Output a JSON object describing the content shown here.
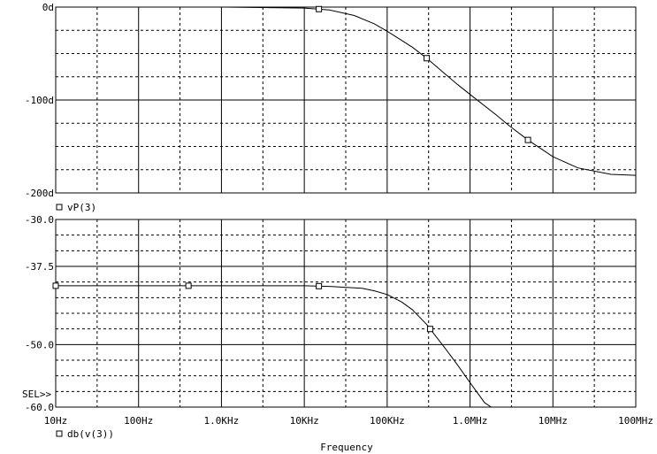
{
  "chart_data": [
    {
      "type": "line",
      "xscale": "log",
      "xlim": [
        10,
        100000000
      ],
      "ylim": [
        -200,
        0
      ],
      "x_tick_labels": [
        "10Hz",
        "100Hz",
        "1.0KHz",
        "10KHz",
        "100KHz",
        "1.0MHz",
        "10MHz",
        "100MHz"
      ],
      "y_ticks": [
        0,
        -100,
        -200
      ],
      "y_tick_labels": [
        "0d",
        "-100d",
        "-200d"
      ],
      "grid": true,
      "series": [
        {
          "name": "vP(3)",
          "x": [
            1000,
            10000,
            20000,
            40000,
            70000,
            100000,
            200000,
            300000,
            500000,
            700000,
            1000000,
            2000000,
            3000000,
            5000000,
            10000000,
            20000000,
            50000000,
            100000000
          ],
          "y": [
            0,
            -1,
            -3,
            -9,
            -18,
            -26,
            -43,
            -55,
            -72,
            -83,
            -94,
            -115,
            -128,
            -143,
            -161,
            -173,
            -180,
            -181
          ],
          "markers_x": [
            15000,
            300000,
            5000000
          ]
        }
      ]
    },
    {
      "type": "line",
      "xscale": "log",
      "xlim": [
        10,
        100000000
      ],
      "ylim": [
        -60,
        -30
      ],
      "x_tick_labels": [
        "10Hz",
        "100Hz",
        "1.0KHz",
        "10KHz",
        "100KHz",
        "1.0MHz",
        "10MHz",
        "100MHz"
      ],
      "y_ticks": [
        -30,
        -37.5,
        -50,
        -60
      ],
      "y_tick_labels": [
        "-30.0",
        "-37.5",
        "-50.0",
        "-60.0"
      ],
      "xlabel": "Frequency",
      "grid": true,
      "series": [
        {
          "name": "db(v(3))",
          "x": [
            10,
            100,
            1000,
            10000,
            20000,
            50000,
            70000,
            100000,
            150000,
            200000,
            300000,
            500000,
            700000,
            1000000,
            1500000,
            1800000
          ],
          "y": [
            -40.6,
            -40.6,
            -40.6,
            -40.6,
            -40.7,
            -41,
            -41.4,
            -42,
            -43.2,
            -44.4,
            -46.8,
            -50.6,
            -53.2,
            -56.1,
            -59.3,
            -60
          ],
          "markers_x": [
            10,
            400,
            15000,
            330000
          ]
        }
      ]
    }
  ],
  "ui": {
    "sel_label": "SEL>>"
  }
}
